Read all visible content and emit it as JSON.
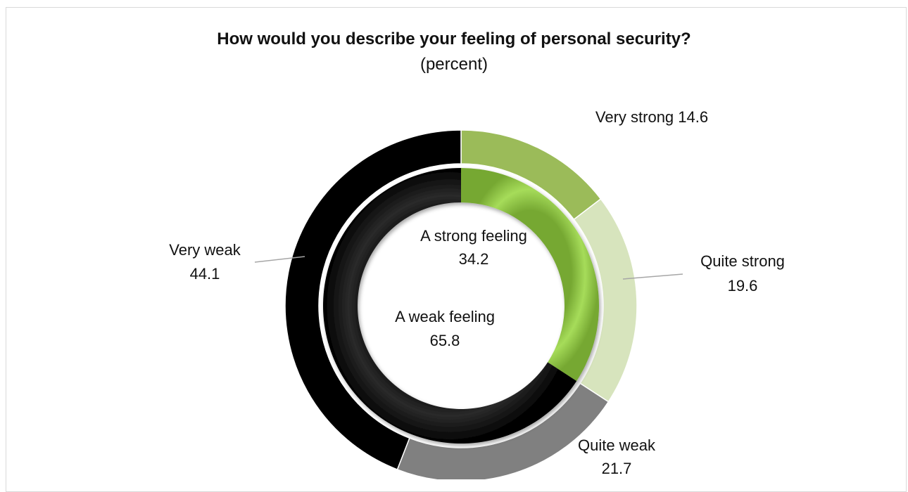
{
  "chart_data": {
    "type": "pie",
    "style": "nested-donut",
    "title": "How would you describe your feeling of personal security?",
    "subtitle": "(percent)",
    "rings": [
      {
        "ring": "outer",
        "slices": [
          {
            "label": "Very strong",
            "value": 14.6,
            "color": "#9bbb59"
          },
          {
            "label": "Quite strong",
            "value": 19.6,
            "color": "#d7e4bd"
          },
          {
            "label": "Quite weak",
            "value": 21.7,
            "color": "#808080"
          },
          {
            "label": "Very weak",
            "value": 44.1,
            "color": "#000000"
          }
        ]
      },
      {
        "ring": "inner",
        "slices": [
          {
            "label": "A strong feeling",
            "value": 34.2,
            "color": "#92d050"
          },
          {
            "label": "A weak feeling",
            "value": 65.8,
            "color": "#111111"
          }
        ]
      }
    ],
    "grid": false,
    "legend": "none"
  }
}
